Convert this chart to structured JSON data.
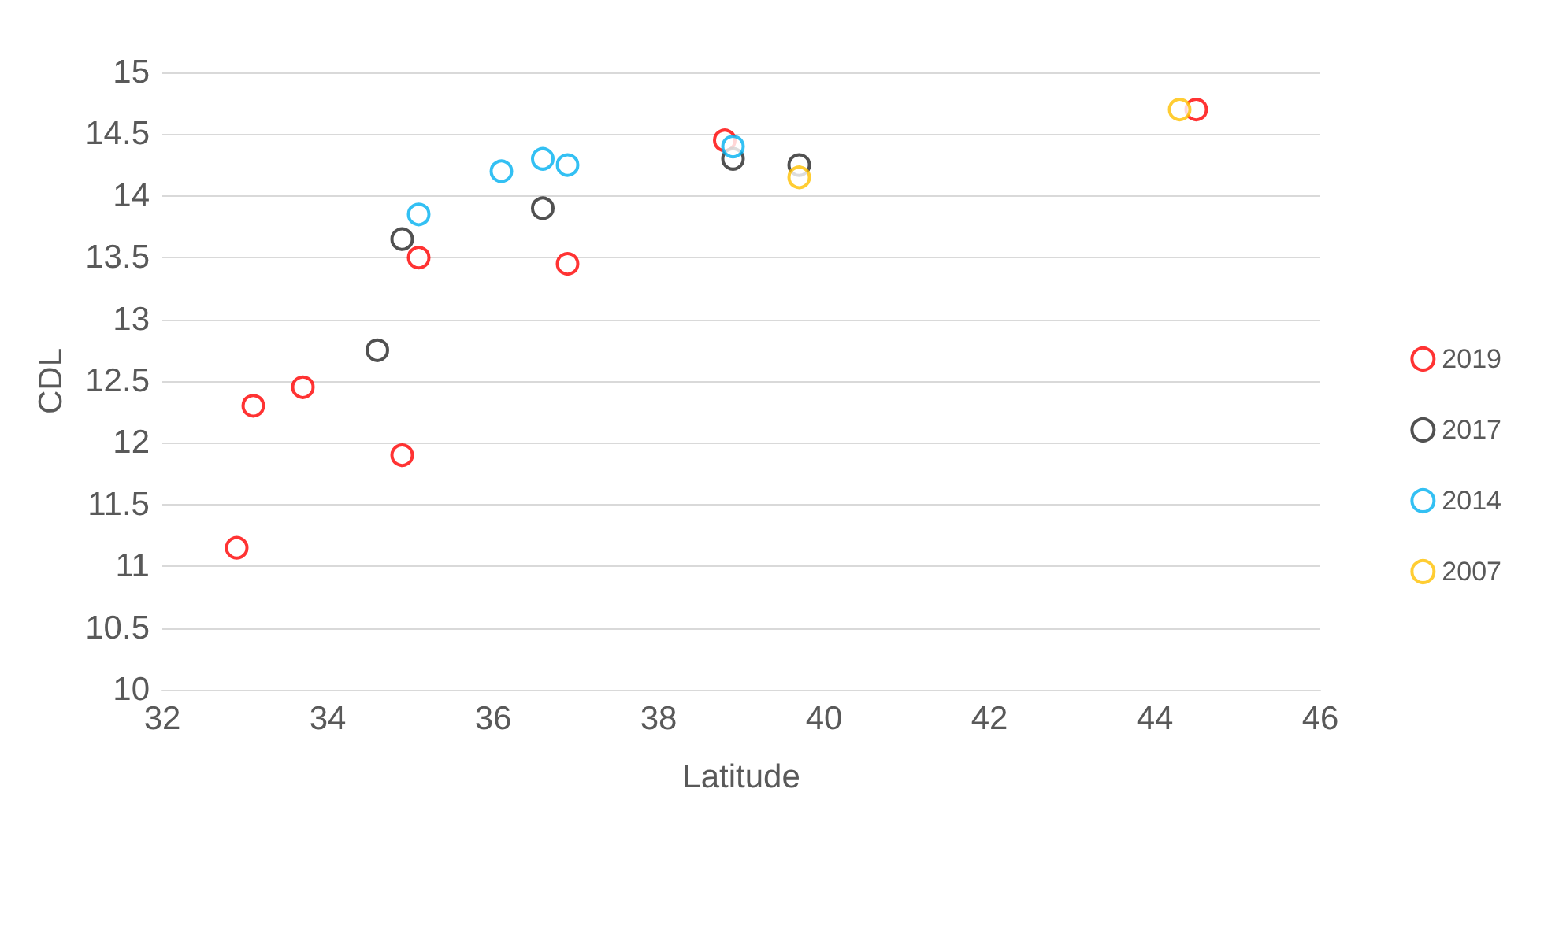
{
  "chart_data": {
    "type": "scatter",
    "xlabel": "Latitude",
    "ylabel": "CDL",
    "xlim": [
      32,
      46
    ],
    "xticks": [
      32,
      34,
      36,
      38,
      40,
      42,
      44,
      46
    ],
    "ylim": [
      10,
      15
    ],
    "yticks": [
      10,
      10.5,
      11,
      11.5,
      12,
      12.5,
      13,
      13.5,
      14,
      14.5,
      15
    ],
    "grid": "y",
    "legend": "right",
    "marker": "circle",
    "series": [
      {
        "name": "2019",
        "color": "#ff0000",
        "x": [
          32.9,
          33.1,
          33.7,
          34.9,
          35.1,
          36.9,
          38.8,
          44.5
        ],
        "values": [
          11.15,
          12.3,
          12.45,
          11.9,
          13.5,
          13.45,
          14.45,
          14.7
        ]
      },
      {
        "name": "2017",
        "color": "#262626",
        "x": [
          34.6,
          34.9,
          36.6,
          38.9,
          39.7
        ],
        "values": [
          12.75,
          13.65,
          13.9,
          14.3,
          14.25
        ]
      },
      {
        "name": "2014",
        "color": "#00b0f0",
        "x": [
          35.1,
          36.1,
          36.6,
          36.9,
          38.9
        ],
        "values": [
          13.85,
          14.2,
          14.3,
          14.25,
          14.4
        ]
      },
      {
        "name": "2007",
        "color": "#ffc000",
        "x": [
          39.7,
          44.3
        ],
        "values": [
          14.15,
          14.7
        ]
      }
    ]
  }
}
